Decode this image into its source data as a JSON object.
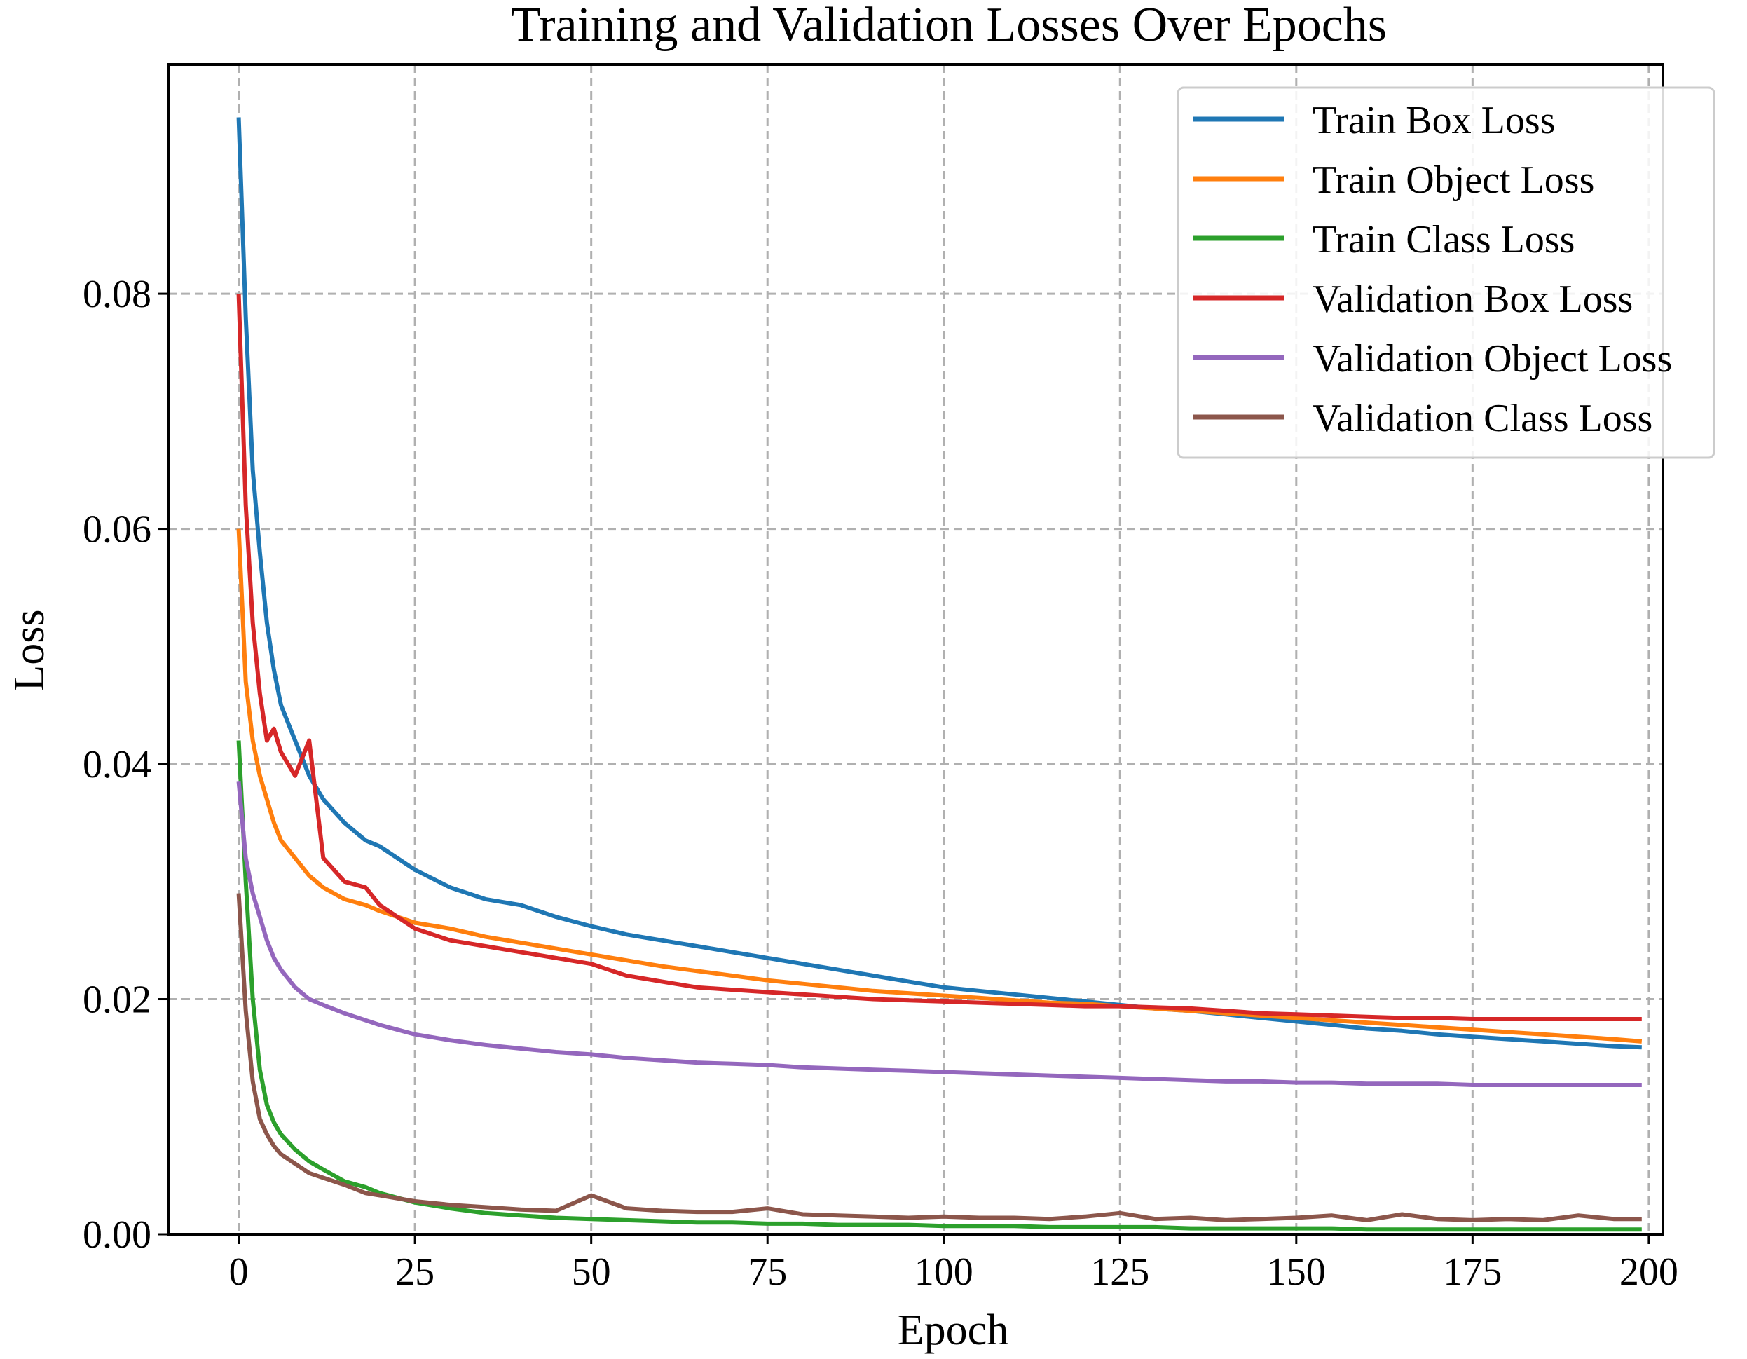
{
  "chart_data": {
    "type": "line",
    "title": "Training and Validation Losses Over Epochs",
    "xlabel": "Epoch",
    "ylabel": "Loss",
    "xlim": [
      -10,
      202
    ],
    "ylim": [
      0,
      0.0995
    ],
    "xticks": [
      0,
      25,
      50,
      75,
      100,
      125,
      150,
      175,
      200
    ],
    "yticks": [
      0.0,
      0.02,
      0.04,
      0.06,
      0.08
    ],
    "ytick_labels": [
      "0.00",
      "0.02",
      "0.04",
      "0.06",
      "0.08"
    ],
    "grid": true,
    "grid_style": "dashed",
    "legend_position": "top-right",
    "x": [
      0,
      1,
      2,
      3,
      4,
      5,
      6,
      8,
      10,
      12,
      15,
      18,
      20,
      25,
      30,
      35,
      40,
      45,
      50,
      55,
      60,
      65,
      70,
      75,
      80,
      85,
      90,
      95,
      100,
      105,
      110,
      115,
      120,
      125,
      130,
      135,
      140,
      145,
      150,
      155,
      160,
      165,
      170,
      175,
      180,
      185,
      190,
      195,
      199
    ],
    "series": [
      {
        "name": "Train Box Loss",
        "color": "#1f77b4",
        "values": [
          0.095,
          0.078,
          0.065,
          0.058,
          0.052,
          0.048,
          0.045,
          0.042,
          0.039,
          0.037,
          0.035,
          0.0335,
          0.033,
          0.031,
          0.0295,
          0.0285,
          0.028,
          0.027,
          0.0262,
          0.0255,
          0.025,
          0.0245,
          0.024,
          0.0235,
          0.023,
          0.0225,
          0.022,
          0.0215,
          0.021,
          0.0207,
          0.0204,
          0.0201,
          0.0198,
          0.0195,
          0.0192,
          0.019,
          0.0187,
          0.0184,
          0.0181,
          0.0178,
          0.0175,
          0.0173,
          0.017,
          0.0168,
          0.0166,
          0.0164,
          0.0162,
          0.016,
          0.0159
        ]
      },
      {
        "name": "Train Object Loss",
        "color": "#ff7f0e",
        "values": [
          0.06,
          0.047,
          0.042,
          0.039,
          0.037,
          0.035,
          0.0335,
          0.032,
          0.0305,
          0.0295,
          0.0285,
          0.028,
          0.0275,
          0.0265,
          0.026,
          0.0253,
          0.0248,
          0.0243,
          0.0238,
          0.0233,
          0.0228,
          0.0224,
          0.022,
          0.0216,
          0.0213,
          0.021,
          0.0207,
          0.0205,
          0.0203,
          0.0201,
          0.0199,
          0.0197,
          0.0196,
          0.0194,
          0.0192,
          0.019,
          0.0188,
          0.0186,
          0.0184,
          0.0182,
          0.018,
          0.0178,
          0.0176,
          0.0174,
          0.0172,
          0.017,
          0.0168,
          0.0166,
          0.0164
        ]
      },
      {
        "name": "Train Class Loss",
        "color": "#2ca02c",
        "values": [
          0.042,
          0.03,
          0.02,
          0.014,
          0.011,
          0.0095,
          0.0085,
          0.0072,
          0.0062,
          0.0055,
          0.0045,
          0.004,
          0.0035,
          0.0027,
          0.0022,
          0.0018,
          0.0016,
          0.0014,
          0.0013,
          0.0012,
          0.0011,
          0.001,
          0.001,
          0.0009,
          0.0009,
          0.0008,
          0.0008,
          0.0008,
          0.0007,
          0.0007,
          0.0007,
          0.0006,
          0.0006,
          0.0006,
          0.0006,
          0.0005,
          0.0005,
          0.0005,
          0.0005,
          0.0005,
          0.0004,
          0.0004,
          0.0004,
          0.0004,
          0.0004,
          0.0004,
          0.0004,
          0.0004,
          0.0004
        ]
      },
      {
        "name": "Validation Box Loss",
        "color": "#d62728",
        "values": [
          0.08,
          0.062,
          0.052,
          0.046,
          0.042,
          0.043,
          0.041,
          0.039,
          0.042,
          0.032,
          0.03,
          0.0295,
          0.028,
          0.026,
          0.025,
          0.0245,
          0.024,
          0.0235,
          0.023,
          0.022,
          0.0215,
          0.021,
          0.0208,
          0.0206,
          0.0204,
          0.0202,
          0.02,
          0.0199,
          0.0198,
          0.0197,
          0.0196,
          0.0195,
          0.0194,
          0.0194,
          0.0193,
          0.0192,
          0.019,
          0.0188,
          0.0187,
          0.0186,
          0.0185,
          0.0184,
          0.0184,
          0.0183,
          0.0183,
          0.0183,
          0.0183,
          0.0183,
          0.0183
        ]
      },
      {
        "name": "Validation Object Loss",
        "color": "#9467bd",
        "values": [
          0.0385,
          0.032,
          0.029,
          0.027,
          0.025,
          0.0235,
          0.0225,
          0.021,
          0.02,
          0.0195,
          0.0188,
          0.0182,
          0.0178,
          0.017,
          0.0165,
          0.0161,
          0.0158,
          0.0155,
          0.0153,
          0.015,
          0.0148,
          0.0146,
          0.0145,
          0.0144,
          0.0142,
          0.0141,
          0.014,
          0.0139,
          0.0138,
          0.0137,
          0.0136,
          0.0135,
          0.0134,
          0.0133,
          0.0132,
          0.0131,
          0.013,
          0.013,
          0.0129,
          0.0129,
          0.0128,
          0.0128,
          0.0128,
          0.0127,
          0.0127,
          0.0127,
          0.0127,
          0.0127,
          0.0127
        ]
      },
      {
        "name": "Validation Class Loss",
        "color": "#8c564b",
        "values": [
          0.029,
          0.019,
          0.013,
          0.0098,
          0.0085,
          0.0075,
          0.0068,
          0.006,
          0.0052,
          0.0048,
          0.0042,
          0.0035,
          0.0033,
          0.0028,
          0.0025,
          0.0023,
          0.0021,
          0.002,
          0.0033,
          0.0022,
          0.002,
          0.0019,
          0.0019,
          0.0022,
          0.0017,
          0.0016,
          0.0015,
          0.0014,
          0.0015,
          0.0014,
          0.0014,
          0.0013,
          0.0015,
          0.0018,
          0.0013,
          0.0014,
          0.0012,
          0.0013,
          0.0014,
          0.0016,
          0.0012,
          0.0017,
          0.0013,
          0.0012,
          0.0013,
          0.0012,
          0.0016,
          0.0013,
          0.0013
        ]
      }
    ]
  }
}
